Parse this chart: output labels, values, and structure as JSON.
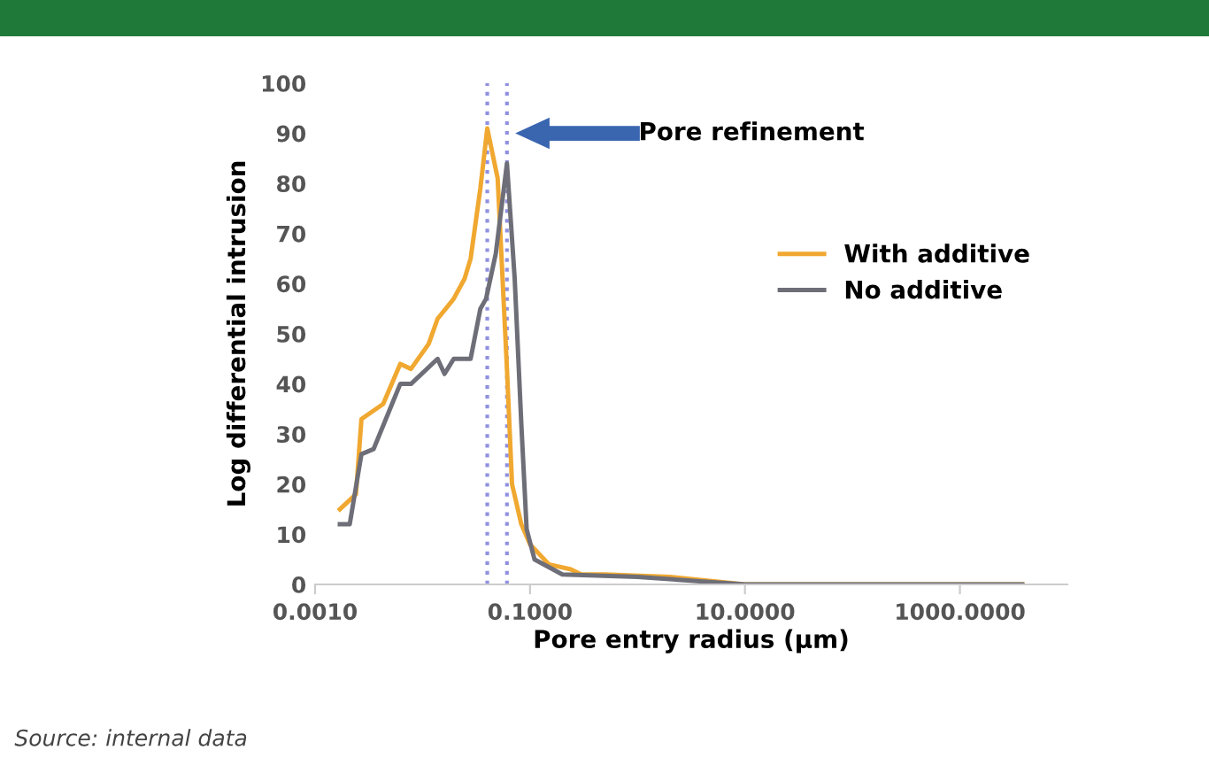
{
  "chart_data": {
    "type": "line",
    "xlabel": "Pore entry radius (µm)",
    "ylabel": "Log differential intrusion",
    "log": "x",
    "xlim": [
      0.001,
      10000
    ],
    "xticks": [
      {
        "value": 0.001,
        "label": "0.0010"
      },
      {
        "value": 0.1,
        "label": "0.1000"
      },
      {
        "value": 10,
        "label": "10.0000"
      },
      {
        "value": 1000,
        "label": "1000.0000"
      }
    ],
    "ylim": [
      0,
      100
    ],
    "yticks": [
      0,
      10,
      20,
      30,
      40,
      50,
      60,
      70,
      80,
      90,
      100
    ],
    "grid": false,
    "legend": "right",
    "marker": "none",
    "line_style": "solid",
    "series": [
      {
        "name": "With additive",
        "color": "#f0a830",
        "x": [
          0.0017,
          0.0024,
          0.0027,
          0.0043,
          0.0062,
          0.0078,
          0.0114,
          0.0138,
          0.0195,
          0.0246,
          0.028,
          0.0345,
          0.04,
          0.05,
          0.061,
          0.068,
          0.083,
          0.1,
          0.15,
          0.24,
          0.3,
          0.5,
          2,
          10,
          3800
        ],
        "values": [
          15,
          18,
          33,
          36,
          44,
          43,
          48,
          53,
          57,
          61,
          65,
          79,
          91,
          81,
          43,
          20,
          12,
          8,
          4,
          3,
          2,
          2,
          1.5,
          0,
          0
        ]
      },
      {
        "name": "No additive",
        "color": "#6e6e78",
        "x": [
          0.0017,
          0.0021,
          0.0027,
          0.0035,
          0.0052,
          0.0062,
          0.0078,
          0.0138,
          0.016,
          0.0195,
          0.028,
          0.0345,
          0.039,
          0.048,
          0.061,
          0.072,
          0.083,
          0.093,
          0.11,
          0.2,
          1,
          10,
          3800
        ],
        "values": [
          12,
          12,
          26,
          27,
          36,
          40,
          40,
          45,
          42,
          45,
          45,
          55,
          57,
          66,
          84,
          61,
          32,
          11,
          5,
          2,
          1.5,
          0,
          0
        ]
      }
    ],
    "ref_lines": [
      {
        "axis": "x",
        "value": 0.04,
        "color": "#9090e0",
        "line_style": "dotted"
      },
      {
        "axis": "x",
        "value": 0.061,
        "color": "#9090e0",
        "line_style": "dotted"
      }
    ],
    "annotations": [
      "Pore refinement",
      "Source: internal data"
    ]
  }
}
